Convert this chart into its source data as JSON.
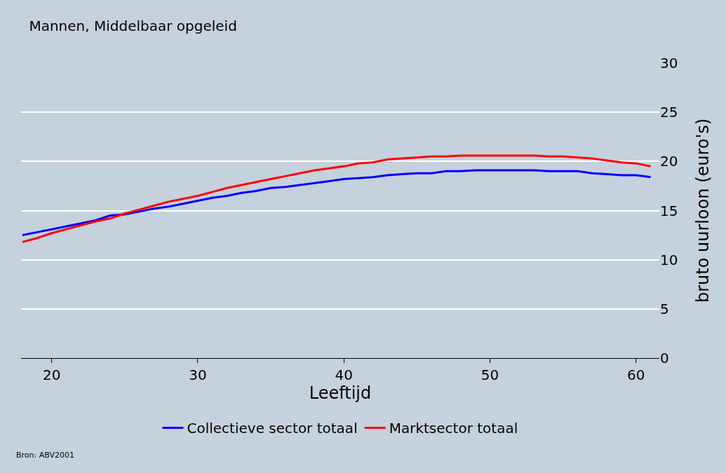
{
  "chart_data": {
    "type": "line",
    "title": "Mannen, Middelbaar opgeleid",
    "xlabel": "Leeftijd",
    "ylabel": "bruto uurloon (euro's)",
    "x": [
      18,
      19,
      20,
      21,
      22,
      23,
      24,
      25,
      26,
      27,
      28,
      29,
      30,
      31,
      32,
      33,
      34,
      35,
      36,
      37,
      38,
      39,
      40,
      41,
      42,
      43,
      44,
      45,
      46,
      47,
      48,
      49,
      50,
      51,
      52,
      53,
      54,
      55,
      56,
      57,
      58,
      59,
      60,
      61
    ],
    "series": [
      {
        "name": "Collectieve sector totaal",
        "color": "#0000ff",
        "values": [
          12.5,
          12.8,
          13.1,
          13.4,
          13.7,
          14.0,
          14.5,
          14.6,
          14.9,
          15.2,
          15.4,
          15.7,
          16.0,
          16.3,
          16.5,
          16.8,
          17.0,
          17.3,
          17.4,
          17.6,
          17.8,
          18.0,
          18.2,
          18.3,
          18.4,
          18.6,
          18.7,
          18.8,
          18.8,
          19.0,
          19.0,
          19.1,
          19.1,
          19.1,
          19.1,
          19.1,
          19.0,
          19.0,
          19.0,
          18.8,
          18.7,
          18.6,
          18.6,
          18.4
        ]
      },
      {
        "name": "Marktsector totaal",
        "color": "#ff0000",
        "values": [
          11.8,
          12.2,
          12.7,
          13.1,
          13.5,
          13.9,
          14.2,
          14.7,
          15.1,
          15.5,
          15.9,
          16.2,
          16.5,
          16.9,
          17.3,
          17.6,
          17.9,
          18.2,
          18.5,
          18.8,
          19.1,
          19.3,
          19.5,
          19.8,
          19.9,
          20.2,
          20.3,
          20.4,
          20.5,
          20.5,
          20.6,
          20.6,
          20.6,
          20.6,
          20.6,
          20.6,
          20.5,
          20.5,
          20.4,
          20.3,
          20.1,
          19.9,
          19.8,
          19.5
        ]
      }
    ],
    "xlim": [
      17.9,
      61.6
    ],
    "xticks": [
      20,
      30,
      40,
      50,
      60
    ],
    "ylim": [
      0,
      30
    ],
    "yticks": [
      0,
      5,
      10,
      15,
      20,
      25,
      30
    ],
    "grid": "y",
    "legend": "bottom",
    "marker": "none",
    "line_style": "solid",
    "annotations": [
      "Bron: ABV2001"
    ]
  }
}
